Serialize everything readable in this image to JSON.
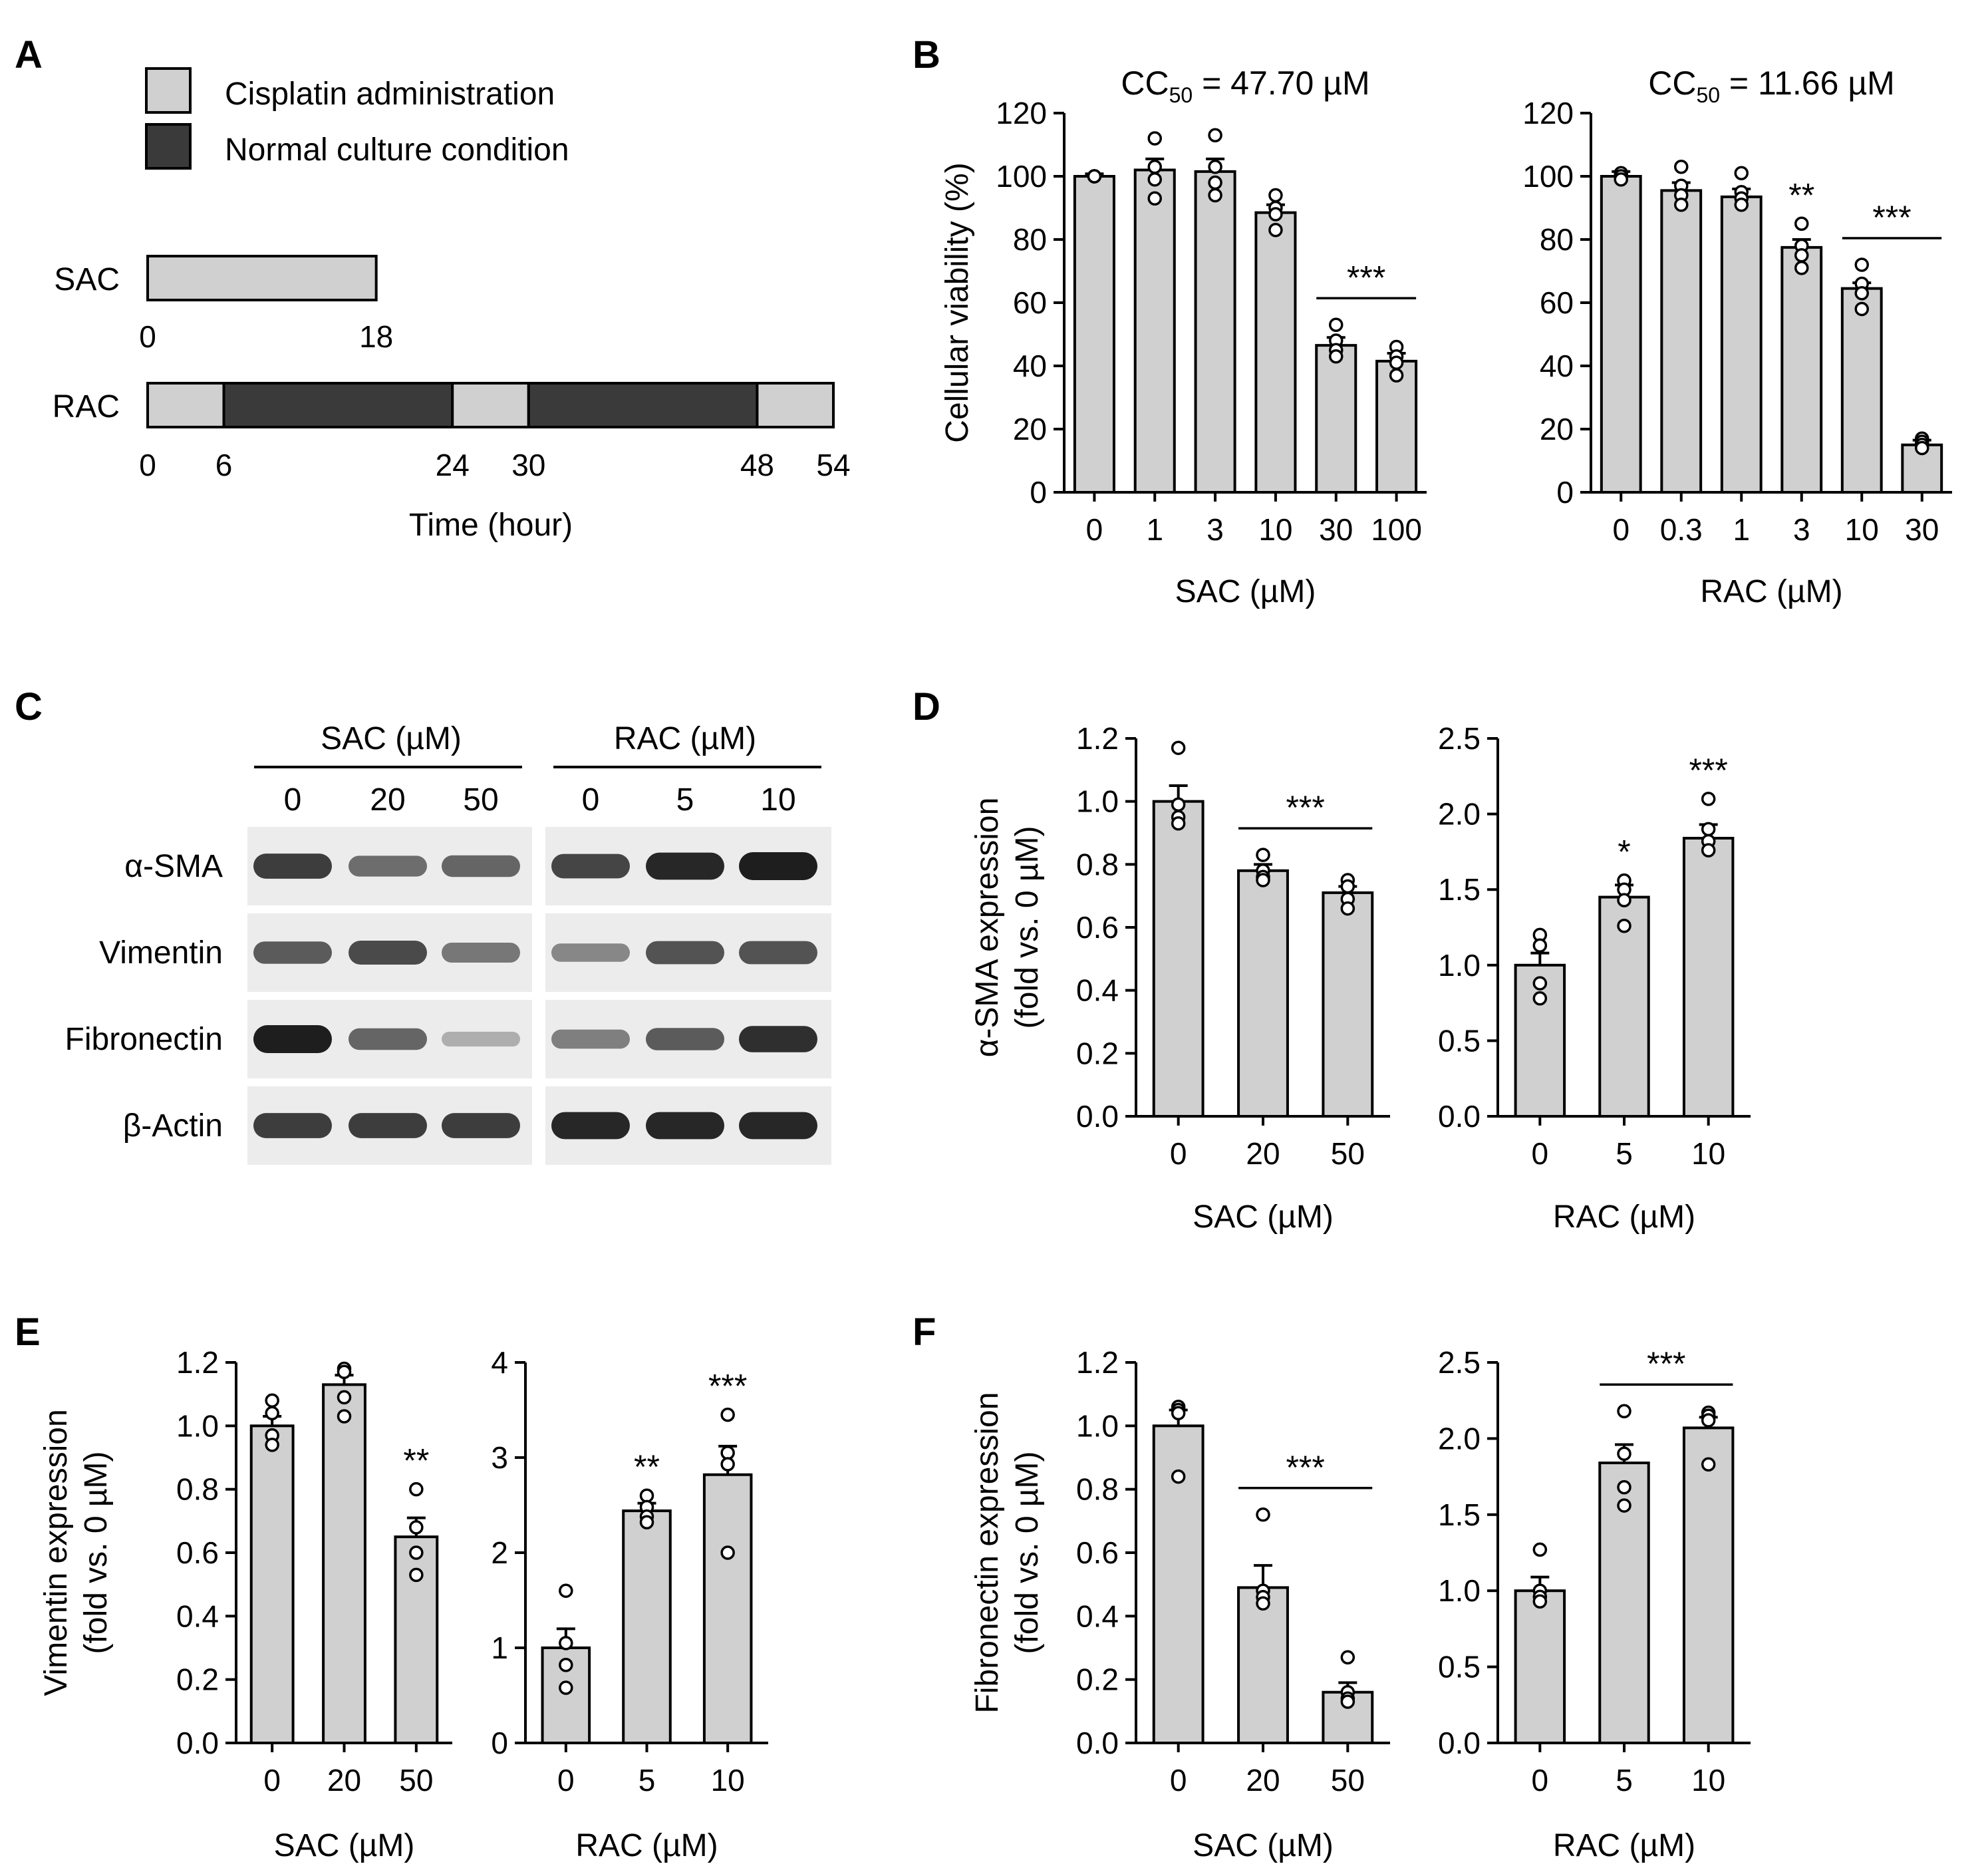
{
  "colors": {
    "bar_fill": "#d0d0d0",
    "dark": "#3a3a3a",
    "ink": "#000000",
    "blot_bg": "#ececec",
    "band": "#1e1e1e"
  },
  "panel_letters": [
    "A",
    "B",
    "C",
    "D",
    "E",
    "F"
  ],
  "timeline": {
    "legend": [
      {
        "label": "Cisplatin administration",
        "color": "#d0d0d0"
      },
      {
        "label": "Normal culture condition",
        "color": "#3a3a3a"
      }
    ],
    "rows": [
      {
        "name": "SAC",
        "segments": [
          {
            "from": 0,
            "to": 18,
            "kind": "cisplatin"
          }
        ],
        "ticks": [
          "0",
          "18"
        ]
      },
      {
        "name": "RAC",
        "segments": [
          {
            "from": 0,
            "to": 6,
            "kind": "cisplatin"
          },
          {
            "from": 6,
            "to": 24,
            "kind": "normal"
          },
          {
            "from": 24,
            "to": 30,
            "kind": "cisplatin"
          },
          {
            "from": 30,
            "to": 48,
            "kind": "normal"
          },
          {
            "from": 48,
            "to": 54,
            "kind": "cisplatin"
          }
        ],
        "ticks": [
          "0",
          "6",
          "24",
          "30",
          "48",
          "54"
        ]
      }
    ],
    "xlabel": "Time (hour)"
  },
  "chart_data": [
    {
      "panel": "B",
      "type": "bar",
      "title_main": "CC",
      "title_sub": "50",
      "title_rest": " = 47.70 µM",
      "ylabel": "Cellular viability (%)",
      "xlabel": "SAC (µM)",
      "ylim": [
        0,
        120
      ],
      "yticks": [
        "0",
        "20",
        "40",
        "60",
        "80",
        "100",
        "120"
      ],
      "categories": [
        "0",
        "1",
        "3",
        "10",
        "30",
        "100"
      ],
      "values": [
        100,
        102,
        101.5,
        88.5,
        46.5,
        41.5
      ],
      "errors": [
        0.8,
        3.5,
        4,
        2.5,
        2.5,
        2.5
      ],
      "points": [
        [
          100,
          100,
          100,
          100
        ],
        [
          112,
          103,
          99,
          93
        ],
        [
          113,
          103,
          98,
          94
        ],
        [
          94,
          90,
          88,
          83
        ],
        [
          53,
          48,
          45,
          43
        ],
        [
          46,
          43,
          41,
          37
        ]
      ],
      "marks": [
        {
          "type": "bracket",
          "from": 4,
          "to": 5,
          "label": "***"
        }
      ]
    },
    {
      "panel": "B",
      "type": "bar",
      "title_main": "CC",
      "title_sub": "50",
      "title_rest": " = 11.66 µM",
      "ylabel": "",
      "xlabel": "RAC (µM)",
      "ylim": [
        0,
        120
      ],
      "yticks": [
        "0",
        "20",
        "40",
        "60",
        "80",
        "100",
        "120"
      ],
      "categories": [
        "0",
        "0.3",
        "1",
        "3",
        "10",
        "30"
      ],
      "values": [
        100,
        95.5,
        93.5,
        77.5,
        64.5,
        15
      ],
      "errors": [
        1.5,
        2.5,
        2.5,
        2.5,
        1.8,
        1.5
      ],
      "points": [
        [
          101,
          100,
          100,
          99
        ],
        [
          103,
          97,
          94,
          91
        ],
        [
          101,
          95,
          93,
          91
        ],
        [
          85,
          78,
          75,
          71
        ],
        [
          72,
          66,
          63,
          58
        ],
        [
          17,
          16,
          15,
          14
        ]
      ],
      "marks": [
        {
          "type": "star",
          "index": 3,
          "label": "**"
        },
        {
          "type": "bracket",
          "from": 4,
          "to": 5,
          "label": "***"
        }
      ]
    },
    {
      "panel": "D",
      "type": "bar",
      "ylabel": "α-SMA expression",
      "ylabel2": "(fold vs. 0 µM)",
      "xlabel": "SAC (µM)",
      "ylim": [
        0,
        1.2
      ],
      "yticks": [
        "0.0",
        "0.2",
        "0.4",
        "0.6",
        "0.8",
        "1.0",
        "1.2"
      ],
      "categories": [
        "0",
        "20",
        "50"
      ],
      "values": [
        1.0,
        0.78,
        0.71
      ],
      "errors": [
        0.05,
        0.02,
        0.02
      ],
      "points": [
        [
          1.17,
          0.99,
          0.95,
          0.93
        ],
        [
          0.83,
          0.78,
          0.76,
          0.75
        ],
        [
          0.75,
          0.73,
          0.69,
          0.66
        ]
      ],
      "marks": [
        {
          "type": "bracket",
          "from": 1,
          "to": 2,
          "label": "***"
        }
      ]
    },
    {
      "panel": "D",
      "type": "bar",
      "ylabel": "",
      "xlabel": "RAC (µM)",
      "ylim": [
        0,
        2.5
      ],
      "yticks": [
        "0.0",
        "0.5",
        "1.0",
        "1.5",
        "2.0",
        "2.5"
      ],
      "categories": [
        "0",
        "5",
        "10"
      ],
      "values": [
        1.0,
        1.45,
        1.84
      ],
      "errors": [
        0.08,
        0.08,
        0.09
      ],
      "points": [
        [
          1.2,
          1.13,
          0.88,
          0.78
        ],
        [
          1.56,
          1.5,
          1.43,
          1.26
        ],
        [
          2.1,
          1.9,
          1.82,
          1.76
        ]
      ],
      "marks": [
        {
          "type": "star",
          "index": 1,
          "label": "*"
        },
        {
          "type": "star",
          "index": 2,
          "label": "***"
        }
      ]
    },
    {
      "panel": "E",
      "type": "bar",
      "ylabel": "Vimentin expression",
      "ylabel2": "(fold vs. 0 µM)",
      "xlabel": "SAC (µM)",
      "ylim": [
        0,
        1.2
      ],
      "yticks": [
        "0.0",
        "0.2",
        "0.4",
        "0.6",
        "0.8",
        "1.0",
        "1.2"
      ],
      "categories": [
        "0",
        "20",
        "50"
      ],
      "values": [
        1.0,
        1.13,
        0.65
      ],
      "errors": [
        0.03,
        0.03,
        0.06
      ],
      "points": [
        [
          1.08,
          1.04,
          0.97,
          0.94
        ],
        [
          1.18,
          1.17,
          1.09,
          1.03
        ],
        [
          0.8,
          0.68,
          0.6,
          0.53
        ]
      ],
      "marks": [
        {
          "type": "star",
          "index": 2,
          "label": "**"
        }
      ]
    },
    {
      "panel": "E",
      "type": "bar",
      "ylabel": "",
      "xlabel": "RAC (µM)",
      "ylim": [
        0,
        4
      ],
      "yticks": [
        "0",
        "1",
        "2",
        "3",
        "4"
      ],
      "categories": [
        "0",
        "5",
        "10"
      ],
      "values": [
        1.0,
        2.44,
        2.82
      ],
      "errors": [
        0.2,
        0.08,
        0.3
      ],
      "points": [
        [
          1.6,
          1.05,
          0.82,
          0.58
        ],
        [
          2.6,
          2.48,
          2.38,
          2.32
        ],
        [
          3.45,
          3.05,
          2.93,
          2.0
        ]
      ],
      "marks": [
        {
          "type": "star",
          "index": 1,
          "label": "**"
        },
        {
          "type": "star",
          "index": 2,
          "label": "***"
        }
      ]
    },
    {
      "panel": "F",
      "type": "bar",
      "ylabel": "Fibronectin expression",
      "ylabel2": "(fold vs. 0 µM)",
      "xlabel": "SAC (µM)",
      "ylim": [
        0,
        1.2
      ],
      "yticks": [
        "0.0",
        "0.2",
        "0.4",
        "0.6",
        "0.8",
        "1.0",
        "1.2"
      ],
      "categories": [
        "0",
        "20",
        "50"
      ],
      "values": [
        1.0,
        0.49,
        0.16
      ],
      "errors": [
        0.05,
        0.07,
        0.03
      ],
      "points": [
        [
          1.06,
          1.05,
          1.04,
          0.84
        ],
        [
          0.72,
          0.48,
          0.46,
          0.44
        ],
        [
          0.27,
          0.16,
          0.14,
          0.13
        ]
      ],
      "marks": [
        {
          "type": "bracket",
          "from": 1,
          "to": 2,
          "label": "***"
        }
      ]
    },
    {
      "panel": "F",
      "type": "bar",
      "ylabel": "",
      "xlabel": "RAC (µM)",
      "ylim": [
        0,
        2.5
      ],
      "yticks": [
        "0.0",
        "0.5",
        "1.0",
        "1.5",
        "2.0",
        "2.5"
      ],
      "categories": [
        "0",
        "5",
        "10"
      ],
      "values": [
        1.0,
        1.84,
        2.07
      ],
      "errors": [
        0.09,
        0.12,
        0.07
      ],
      "points": [
        [
          1.27,
          1.0,
          0.96,
          0.93
        ],
        [
          2.18,
          1.9,
          1.68,
          1.56
        ],
        [
          2.17,
          2.15,
          2.12,
          1.83
        ]
      ],
      "marks": [
        {
          "type": "bracket",
          "from": 1,
          "to": 2,
          "label": "***"
        }
      ]
    }
  ],
  "blot": {
    "groups": [
      {
        "title": "SAC (µM)",
        "lanes": [
          "0",
          "20",
          "50"
        ]
      },
      {
        "title": "RAC (µM)",
        "lanes": [
          "0",
          "5",
          "10"
        ]
      }
    ],
    "rows": [
      {
        "label": "α-SMA",
        "intensity": [
          [
            0.82,
            0.55,
            0.6
          ],
          [
            0.78,
            0.95,
            1.0
          ]
        ]
      },
      {
        "label": "Vimentin",
        "intensity": [
          [
            0.65,
            0.75,
            0.5
          ],
          [
            0.4,
            0.7,
            0.7
          ]
        ]
      },
      {
        "label": "Fibronectin",
        "intensity": [
          [
            1.0,
            0.6,
            0.18
          ],
          [
            0.45,
            0.65,
            0.9
          ]
        ]
      },
      {
        "label": "β-Actin",
        "intensity": [
          [
            0.82,
            0.82,
            0.82
          ],
          [
            0.95,
            0.95,
            0.95
          ]
        ]
      }
    ]
  }
}
